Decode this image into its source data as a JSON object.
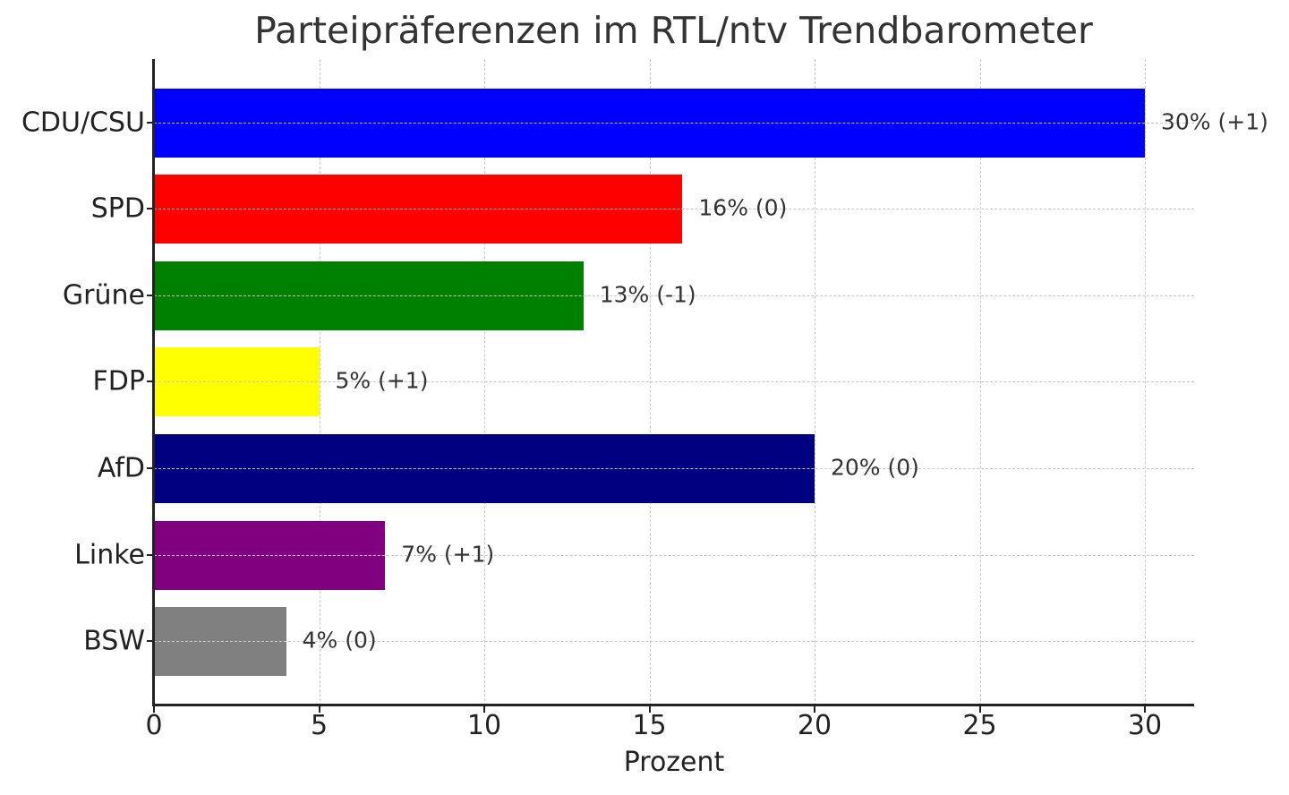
{
  "chart_data": {
    "type": "bar",
    "orientation": "horizontal",
    "title": "Parteipräferenzen im RTL/ntv Trendbarometer",
    "xlabel": "Prozent",
    "ylabel": "",
    "xlim": [
      0,
      31.5
    ],
    "xticks": [
      0,
      5,
      10,
      15,
      20,
      25,
      30
    ],
    "grid": true,
    "legend": null,
    "categories": [
      "CDU/CSU",
      "SPD",
      "Grüne",
      "FDP",
      "AfD",
      "Linke",
      "BSW"
    ],
    "values": [
      30,
      16,
      13,
      5,
      20,
      7,
      4
    ],
    "changes": [
      1,
      0,
      -1,
      1,
      0,
      1,
      0
    ],
    "colors": [
      "#0000ff",
      "#ff0000",
      "#008000",
      "#ffff00",
      "#000080",
      "#800080",
      "#808080"
    ],
    "annotations": [
      "30% (+1)",
      "16% (0)",
      "13% (-1)",
      "5% (+1)",
      "20% (0)",
      "7% (+1)",
      "4% (0)"
    ]
  }
}
